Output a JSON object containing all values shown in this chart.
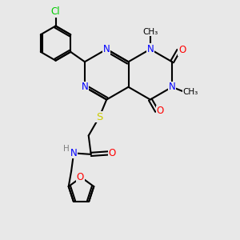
{
  "bg_color": "#e8e8e8",
  "bond_color": "#000000",
  "atom_colors": {
    "N": "#0000ff",
    "O": "#ff0000",
    "S": "#cccc00",
    "Cl": "#00cc00",
    "C": "#000000",
    "H": "#808080"
  },
  "bond_width": 1.5,
  "font_size": 8.5,
  "figsize": [
    3.0,
    3.0
  ],
  "dpi": 100
}
